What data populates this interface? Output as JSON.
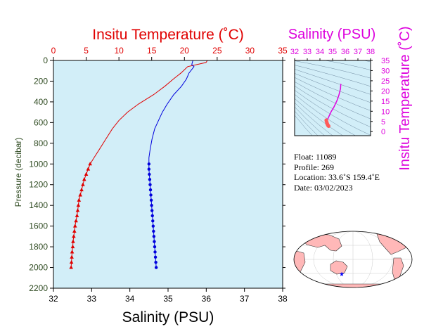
{
  "chart_data": [
    {
      "type": "line",
      "title": "",
      "top_axis": {
        "label": "Insitu Temperature (˚C)",
        "range": [
          0,
          35
        ],
        "ticks": [
          0,
          5,
          10,
          15,
          20,
          25,
          30,
          35
        ],
        "color": "#e00000"
      },
      "bottom_axis": {
        "label": "Salinity (PSU)",
        "range": [
          32,
          38
        ],
        "ticks": [
          32,
          33,
          34,
          35,
          36,
          37,
          38
        ],
        "color": "#000000"
      },
      "left_axis": {
        "label": "Pressure (decibar)",
        "range": [
          0,
          2200
        ],
        "reversed": true,
        "ticks": [
          0,
          200,
          400,
          600,
          800,
          1000,
          1200,
          1400,
          1600,
          1800,
          2000,
          2200
        ],
        "color": "#2e4a20"
      },
      "background": "#d2eef8",
      "series": [
        {
          "quantity": "temperature",
          "color": "#e00000",
          "marker": "triangle",
          "line_points": [
            [
              23.5,
              0
            ],
            [
              23.3,
              20
            ],
            [
              20.5,
              60
            ],
            [
              19.5,
              120
            ],
            [
              18.3,
              180
            ],
            [
              17.0,
              250
            ],
            [
              15.3,
              330
            ],
            [
              13.0,
              420
            ],
            [
              11.3,
              500
            ],
            [
              10.0,
              580
            ],
            [
              9.0,
              660
            ],
            [
              8.0,
              760
            ],
            [
              7.0,
              860
            ],
            [
              6.2,
              940
            ],
            [
              5.6,
              1000
            ]
          ],
          "marker_points": [
            [
              5.6,
              1000
            ],
            [
              5.3,
              1050
            ],
            [
              5.0,
              1100
            ],
            [
              4.7,
              1150
            ],
            [
              4.5,
              1200
            ],
            [
              4.3,
              1250
            ],
            [
              4.1,
              1300
            ],
            [
              3.9,
              1350
            ],
            [
              3.8,
              1400
            ],
            [
              3.7,
              1450
            ],
            [
              3.6,
              1500
            ],
            [
              3.45,
              1550
            ],
            [
              3.3,
              1600
            ],
            [
              3.2,
              1650
            ],
            [
              3.1,
              1700
            ],
            [
              3.0,
              1750
            ],
            [
              2.95,
              1800
            ],
            [
              2.85,
              1850
            ],
            [
              2.8,
              1900
            ],
            [
              2.75,
              1950
            ],
            [
              2.7,
              2000
            ]
          ]
        },
        {
          "quantity": "salinity",
          "color": "#0000dd",
          "marker": "circle",
          "line_points": [
            [
              35.65,
              0
            ],
            [
              35.62,
              40
            ],
            [
              35.68,
              60
            ],
            [
              35.55,
              120
            ],
            [
              35.48,
              180
            ],
            [
              35.35,
              250
            ],
            [
              35.15,
              330
            ],
            [
              34.98,
              420
            ],
            [
              34.85,
              500
            ],
            [
              34.75,
              580
            ],
            [
              34.65,
              660
            ],
            [
              34.58,
              760
            ],
            [
              34.53,
              860
            ],
            [
              34.5,
              940
            ],
            [
              34.5,
              1000
            ]
          ],
          "marker_points": [
            [
              34.5,
              1000
            ],
            [
              34.5,
              1050
            ],
            [
              34.51,
              1100
            ],
            [
              34.52,
              1150
            ],
            [
              34.53,
              1200
            ],
            [
              34.54,
              1250
            ],
            [
              34.55,
              1300
            ],
            [
              34.56,
              1350
            ],
            [
              34.57,
              1400
            ],
            [
              34.58,
              1450
            ],
            [
              34.59,
              1500
            ],
            [
              34.6,
              1550
            ],
            [
              34.61,
              1600
            ],
            [
              34.62,
              1650
            ],
            [
              34.63,
              1700
            ],
            [
              34.64,
              1750
            ],
            [
              34.65,
              1800
            ],
            [
              34.66,
              1850
            ],
            [
              34.67,
              1900
            ],
            [
              34.68,
              1950
            ],
            [
              34.69,
              2000
            ]
          ]
        }
      ]
    },
    {
      "type": "scatter",
      "title": "",
      "x_axis": {
        "label": "Salinity (PSU)",
        "range": [
          32,
          38
        ],
        "ticks": [
          32,
          33,
          34,
          35,
          36,
          37,
          38
        ],
        "color": "#dd00dd"
      },
      "y_axis": {
        "label": "Insitu Temperature (˚C)",
        "range": [
          -2,
          35
        ],
        "ticks": [
          0,
          5,
          10,
          15,
          20,
          25,
          30,
          35
        ],
        "color": "#dd00dd"
      },
      "background": "#d2eef8",
      "density_contours": true,
      "trace_color": "#e000e0",
      "trace_points": [
        [
          35.65,
          23.5
        ],
        [
          35.62,
          21
        ],
        [
          35.5,
          18
        ],
        [
          35.35,
          15.3
        ],
        [
          35.1,
          12
        ],
        [
          34.9,
          10
        ],
        [
          34.75,
          8
        ],
        [
          34.6,
          6
        ],
        [
          34.55,
          5
        ]
      ],
      "cluster_color": "#ff5a5a",
      "cluster_points": [
        [
          34.5,
          5.6
        ],
        [
          34.52,
          5.0
        ],
        [
          34.55,
          4.4
        ],
        [
          34.57,
          3.9
        ],
        [
          34.6,
          3.5
        ],
        [
          34.63,
          3.1
        ],
        [
          34.66,
          2.9
        ],
        [
          34.69,
          2.7
        ]
      ]
    }
  ],
  "float_info": {
    "float_line": "Float:  11089",
    "profile_line": "Profile:  269",
    "location_line": "Location:  33.6˚S  159.4˚E",
    "date_line": "Date:  03/02/2023"
  },
  "map": {
    "land_color": "#ffb8b8",
    "ocean_color": "#ffffff",
    "marker_color": "#0000ff",
    "marker_location": {
      "lat": -33.6,
      "lon": 159.4
    }
  }
}
